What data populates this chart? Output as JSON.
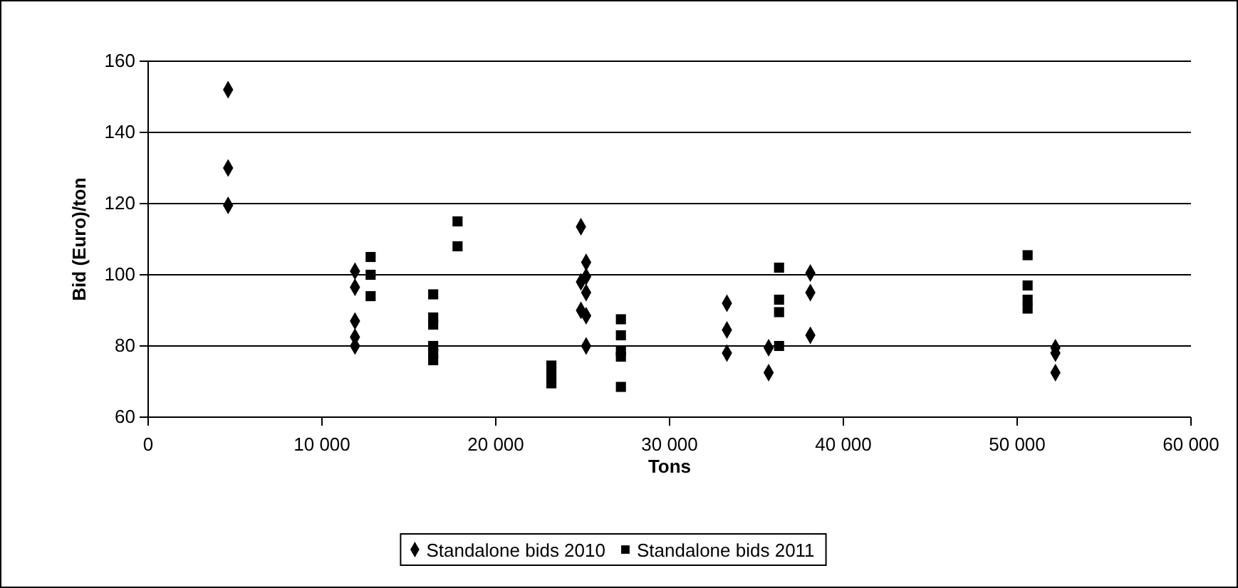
{
  "chart_data": {
    "type": "scatter",
    "xlabel": "Tons",
    "ylabel": "Bid (Euro)/ton",
    "xlim": [
      0,
      60000
    ],
    "ylim": [
      60,
      160
    ],
    "xticks": [
      {
        "value": 0,
        "label": "0"
      },
      {
        "value": 10000,
        "label": "10 000"
      },
      {
        "value": 20000,
        "label": "20 000"
      },
      {
        "value": 30000,
        "label": "30 000"
      },
      {
        "value": 40000,
        "label": "40 000"
      },
      {
        "value": 50000,
        "label": "50 000"
      },
      {
        "value": 60000,
        "label": "60 000"
      }
    ],
    "yticks": [
      60,
      80,
      100,
      120,
      140,
      160
    ],
    "grid": "y",
    "legend": "bottom",
    "series": [
      {
        "name": "Standalone bids 2010",
        "color": "#000000",
        "marker": "diamond",
        "x": [
          4600,
          4600,
          4600,
          11900,
          11900,
          11900,
          11900,
          11900,
          24900,
          25200,
          25200,
          24900,
          25200,
          24900,
          25200,
          25200,
          33300,
          33300,
          33300,
          35700,
          35700,
          38100,
          38100,
          38100,
          52200,
          52200,
          52200
        ],
        "values": [
          152,
          130,
          119.5,
          101,
          96.5,
          87,
          82.5,
          80,
          113.5,
          103.5,
          99.5,
          98,
          95,
          90,
          88.5,
          80,
          92,
          84.5,
          78,
          79.5,
          72.5,
          100.5,
          95,
          83,
          79.5,
          78,
          72.5
        ]
      },
      {
        "name": "Standalone bids 2011",
        "color": "#000000",
        "marker": "square",
        "x": [
          12800,
          12800,
          12800,
          16400,
          16400,
          16400,
          16400,
          16400,
          16400,
          17800,
          17800,
          23200,
          23200,
          23200,
          27200,
          27200,
          27200,
          27200,
          27200,
          36300,
          36300,
          36300,
          36300,
          50600,
          50600,
          50600,
          50600
        ],
        "values": [
          105,
          100,
          94,
          94.5,
          88,
          86,
          80,
          78,
          76,
          115,
          108,
          74.5,
          72,
          69.5,
          87.5,
          83,
          78.5,
          77,
          68.5,
          102,
          93,
          89.5,
          80,
          105.5,
          97,
          93,
          90.5
        ]
      }
    ]
  }
}
